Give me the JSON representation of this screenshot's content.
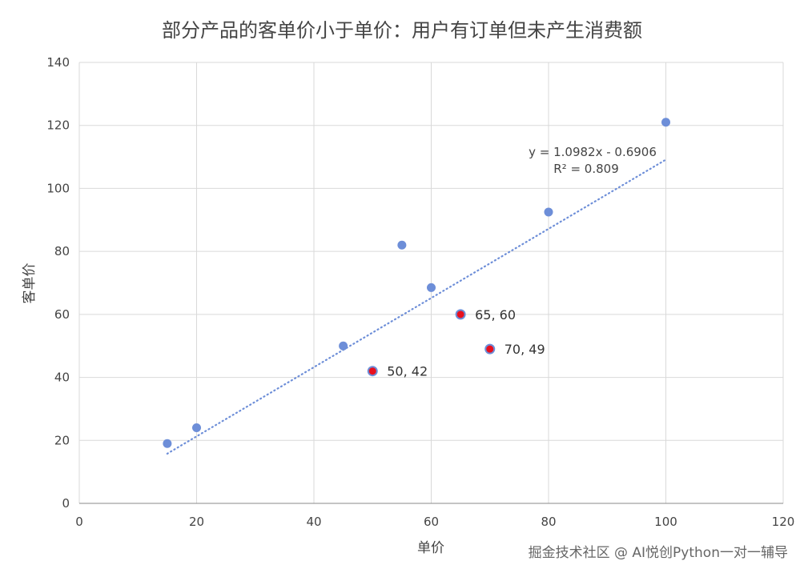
{
  "chart_data": {
    "type": "scatter",
    "title": "部分产品的客单价小于单价：用户有订单但未产生消费额",
    "xlabel": "单价",
    "ylabel": "客单价",
    "xlim": [
      0,
      120
    ],
    "ylim": [
      0,
      140
    ],
    "x_ticks": [
      0,
      20,
      40,
      60,
      80,
      100,
      120
    ],
    "y_ticks": [
      0,
      20,
      40,
      60,
      80,
      100,
      120,
      140
    ],
    "grid": true,
    "points": [
      {
        "x": 15,
        "y": 19,
        "highlight": false
      },
      {
        "x": 20,
        "y": 24,
        "highlight": false
      },
      {
        "x": 45,
        "y": 50,
        "highlight": false
      },
      {
        "x": 50,
        "y": 42,
        "highlight": true,
        "label": "50, 42"
      },
      {
        "x": 55,
        "y": 82,
        "highlight": false
      },
      {
        "x": 60,
        "y": 68.5,
        "highlight": false
      },
      {
        "x": 65,
        "y": 60,
        "highlight": true,
        "label": "65, 60"
      },
      {
        "x": 70,
        "y": 49,
        "highlight": true,
        "label": "70, 49"
      },
      {
        "x": 80,
        "y": 92.5,
        "highlight": false
      },
      {
        "x": 100,
        "y": 121,
        "highlight": false
      }
    ],
    "trendline": {
      "slope": 1.0982,
      "intercept": -0.6906,
      "x_range": [
        15,
        100
      ],
      "equation": "y = 1.0982x - 0.6906",
      "r2_label": "R² = 0.809"
    },
    "colors": {
      "point": "#6d8ed8",
      "highlight": "#e8101e",
      "trend": "#6d8ed8",
      "grid": "#d9d9d9"
    }
  },
  "watermark": "掘金技术社区 @ AI悦创Python一对一辅导"
}
